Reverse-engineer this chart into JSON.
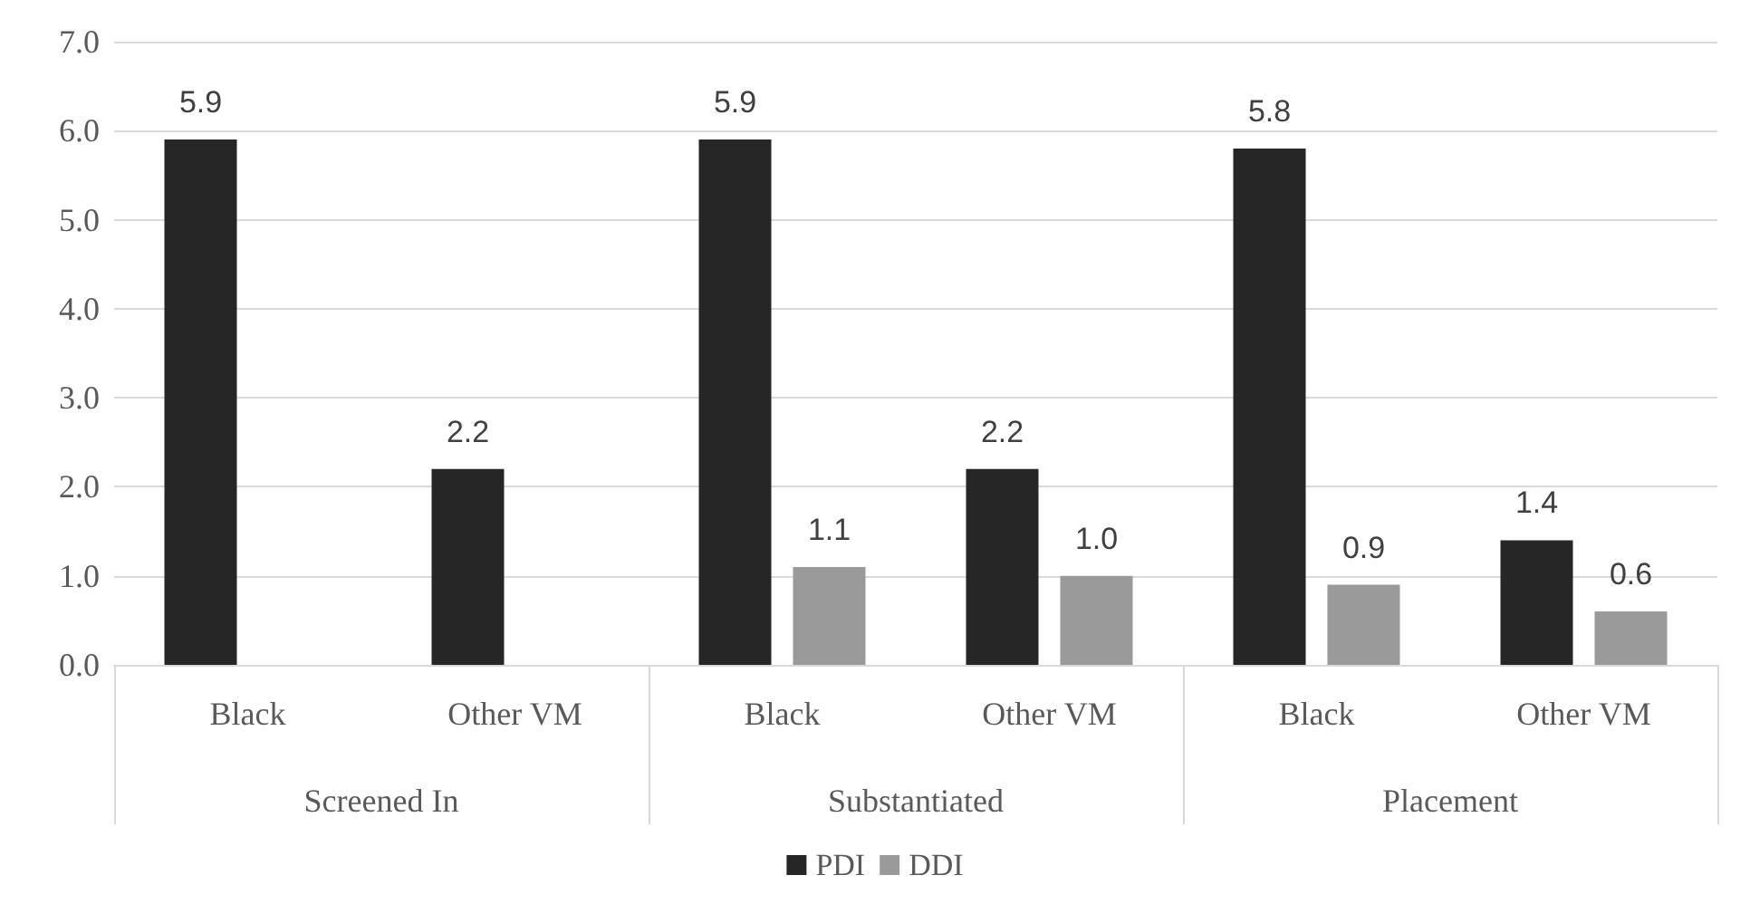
{
  "chart_data": {
    "type": "bar",
    "categories": [
      "Black",
      "Other VM",
      "Black",
      "Other VM",
      "Black",
      "Other VM"
    ],
    "series": [
      {
        "name": "PDI",
        "color": "#262626",
        "values": [
          5.9,
          2.2,
          5.9,
          2.2,
          5.8,
          1.4
        ],
        "value_labels": [
          "5.9",
          "2.2",
          "5.9",
          "2.2",
          "5.8",
          "1.4"
        ]
      },
      {
        "name": "DDI",
        "color": "#9a9a9a",
        "values": [
          null,
          null,
          1.1,
          1.0,
          0.9,
          0.6
        ],
        "value_labels": [
          null,
          null,
          "1.1",
          "1.0",
          "0.9",
          "0.6"
        ]
      }
    ],
    "annotations": [
      "Screened In",
      "Substantiated",
      "Placement"
    ],
    "ylim": [
      0,
      7
    ],
    "yticks": [
      {
        "value": 0,
        "label": "0.0"
      },
      {
        "value": 1,
        "label": "1.0"
      },
      {
        "value": 2,
        "label": "2.0"
      },
      {
        "value": 3,
        "label": "3.0"
      },
      {
        "value": 4,
        "label": "4.0"
      },
      {
        "value": 5,
        "label": "5.0"
      },
      {
        "value": 6,
        "label": "6.0"
      },
      {
        "value": 7,
        "label": "7.0"
      }
    ],
    "grid": "y",
    "legend": "bottom"
  }
}
